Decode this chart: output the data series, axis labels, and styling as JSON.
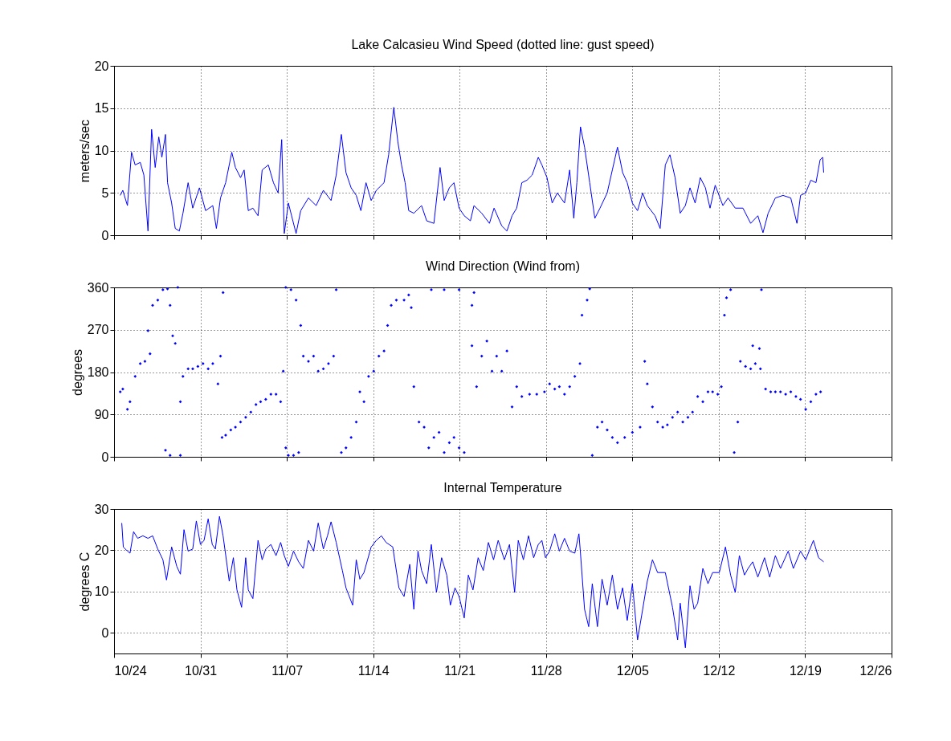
{
  "chart_data": [
    {
      "type": "line",
      "title": "Lake Calcasieu Wind Speed (dotted line: gust speed)",
      "ylabel": "meters/sec",
      "color": "#0000ff",
      "grid": true,
      "tick_labels": "y",
      "xlim": [
        "--10-24",
        "--12-26"
      ],
      "xticks": [
        {
          "value": "--10-24",
          "label": "10/24"
        },
        {
          "value": "--10-31",
          "label": "10/31"
        },
        {
          "value": "--11-07",
          "label": "11/07"
        },
        {
          "value": "--11-14",
          "label": "11/14"
        },
        {
          "value": "--11-21",
          "label": "11/21"
        },
        {
          "value": "--11-28",
          "label": "11/28"
        },
        {
          "value": "--12-05",
          "label": "12/05"
        },
        {
          "value": "--12-12",
          "label": "12/12"
        },
        {
          "value": "--12-19",
          "label": "12/19"
        },
        {
          "value": "--12-26",
          "label": "12/26"
        }
      ],
      "ylim": [
        0,
        20
      ],
      "yticks": [
        0,
        5,
        10,
        15,
        20
      ],
      "x": [
        "--10-24T12:00",
        "--10-24T17:00",
        "--10-25T02:00",
        "--10-25T10:00",
        "--10-25T17:00",
        "--10-26T03:00",
        "--10-26T10:00",
        "--10-26T18:00",
        "--10-27T01:00",
        "--10-27T08:00",
        "--10-27T15:00",
        "--10-27T21:00",
        "--10-28T04:00",
        "--10-28T08:00",
        "--10-28T16:00",
        "--10-28T23:00",
        "--10-29T07:00",
        "--10-29T14:00",
        "--10-30T00:00",
        "--10-30T09:00",
        "--10-30T22:00",
        "--10-31T10:00",
        "--11-01T00:00",
        "--11-01T07:00",
        "--11-01T15:00",
        "--11-02T01:00",
        "--11-02T13:00",
        "--11-02T20:00",
        "--11-03T06:00",
        "--11-03T13:00",
        "--11-03T21:00",
        "--11-04T06:00",
        "--11-04T16:00",
        "--11-05T00:00",
        "--11-05T12:00",
        "--11-05T22:00",
        "--11-06T07:00",
        "--11-06T14:00",
        "--11-06T19:00",
        "--11-07T03:00",
        "--11-07T18:00",
        "--11-08T03:00",
        "--11-08T18:00",
        "--11-09T09:00",
        "--11-09T23:00",
        "--11-10T14:00",
        "--11-11T00:00",
        "--11-11T10:00",
        "--11-11T19:00",
        "--11-12T05:00",
        "--11-12T15:00",
        "--11-13T00:00",
        "--11-13T10:00",
        "--11-13T20:00",
        "--11-14T06:00",
        "--11-14T21:00",
        "--11-15T06:00",
        "--11-15T16:00",
        "--11-16T00:00",
        "--11-16T07:00",
        "--11-16T14:00",
        "--11-16T21:00",
        "--11-17T07:00",
        "--11-17T22:00",
        "--11-18T08:00",
        "--11-18T22:00",
        "--11-19T10:00",
        "--11-19T18:00",
        "--11-20T04:00",
        "--11-20T13:00",
        "--11-20T23:00",
        "--11-21T09:00",
        "--11-21T21:00",
        "--11-22T04:00",
        "--11-22T19:00",
        "--11-23T10:00",
        "--11-23T19:00",
        "--11-24T10:00",
        "--11-24T20:00",
        "--11-25T06:00",
        "--11-25T15:00",
        "--11-26T01:00",
        "--11-26T11:00",
        "--11-26T21:00",
        "--11-27T09:00",
        "--11-27T16:00",
        "--11-28T02:00",
        "--11-28T12:00",
        "--11-28T22:00",
        "--11-29T12:00",
        "--11-29T22:00",
        "--11-30T06:00",
        "--11-30T12:00",
        "--11-30T19:00",
        "--12-01T03:00",
        "--12-01T13:00",
        "--12-01T23:00",
        "--12-02T09:00",
        "--12-02T23:00",
        "--12-03T09:00",
        "--12-03T19:00",
        "--12-04T05:00",
        "--12-04T14:00",
        "--12-05T00:00",
        "--12-05T10:00",
        "--12-05T20:00",
        "--12-06T05:00",
        "--12-06T20:00",
        "--12-07T06:00",
        "--12-07T16:00",
        "--12-08T01:00",
        "--12-08T11:00",
        "--12-08T21:00",
        "--12-09T07:00",
        "--12-09T16:00",
        "--12-10T02:00",
        "--12-10T12:00",
        "--12-10T22:00",
        "--12-11T07:00",
        "--12-11T17:00",
        "--12-12T08:00",
        "--12-12T18:00",
        "--12-13T08:00",
        "--12-13T23:00",
        "--12-14T14:00",
        "--12-15T04:00",
        "--12-15T14:00",
        "--12-16T00:00",
        "--12-16T14:00",
        "--12-17T05:00",
        "--12-17T20:00",
        "--12-18T08:00",
        "--12-18T15:00",
        "--12-19T01:00",
        "--12-19T11:00",
        "--12-19T21:00",
        "--12-20T05:00",
        "--12-20T10:00",
        "--12-20T12:00"
      ],
      "values": [
        4.7,
        5.3,
        3.5,
        9.8,
        8.3,
        8.6,
        7.1,
        0.5,
        12.5,
        8.0,
        11.6,
        9.2,
        11.9,
        6.2,
        3.8,
        0.8,
        0.5,
        2.6,
        6.2,
        3.2,
        5.6,
        2.9,
        3.5,
        0.8,
        4.4,
        6.2,
        9.8,
        8.0,
        6.8,
        7.7,
        2.9,
        3.2,
        2.3,
        7.7,
        8.3,
        6.2,
        5.0,
        11.3,
        0.2,
        3.8,
        0.2,
        2.9,
        4.4,
        3.5,
        5.3,
        4.1,
        7.1,
        11.9,
        7.4,
        5.6,
        4.7,
        2.9,
        6.2,
        4.1,
        5.3,
        6.2,
        9.5,
        15.1,
        11.0,
        8.3,
        6.2,
        2.9,
        2.6,
        3.5,
        1.7,
        1.4,
        8.0,
        4.1,
        5.6,
        6.2,
        3.2,
        2.3,
        1.7,
        3.5,
        2.6,
        1.4,
        3.2,
        1.1,
        0.5,
        2.3,
        3.2,
        6.2,
        6.5,
        7.1,
        9.2,
        8.3,
        6.8,
        3.8,
        5.0,
        3.8,
        7.7,
        2.0,
        6.2,
        12.8,
        10.4,
        6.2,
        2.0,
        3.2,
        5.0,
        7.7,
        10.4,
        7.4,
        6.2,
        3.8,
        2.9,
        5.0,
        3.5,
        2.3,
        0.8,
        8.3,
        9.5,
        6.8,
        2.6,
        3.5,
        5.6,
        3.8,
        6.8,
        5.6,
        3.2,
        5.9,
        3.5,
        4.4,
        3.2,
        3.2,
        1.4,
        2.3,
        0.3,
        2.6,
        4.4,
        4.7,
        4.4,
        1.4,
        4.7,
        5.0,
        6.5,
        6.2,
        8.9,
        9.2,
        7.4
      ]
    },
    {
      "type": "scatter",
      "title": "Wind Direction (Wind from)",
      "ylabel": "degrees",
      "color": "#0000ff",
      "marker": "diamond",
      "grid": true,
      "tick_labels": "y",
      "xlim": [
        "--10-24",
        "--12-26"
      ],
      "xticks": [
        {
          "value": "--10-24",
          "label": "10/24"
        },
        {
          "value": "--10-31",
          "label": "10/31"
        },
        {
          "value": "--11-07",
          "label": "11/07"
        },
        {
          "value": "--11-14",
          "label": "11/14"
        },
        {
          "value": "--11-21",
          "label": "11/21"
        },
        {
          "value": "--11-28",
          "label": "11/28"
        },
        {
          "value": "--12-05",
          "label": "12/05"
        },
        {
          "value": "--12-12",
          "label": "12/12"
        },
        {
          "value": "--12-19",
          "label": "12/19"
        },
        {
          "value": "--12-26",
          "label": "12/26"
        }
      ],
      "ylim": [
        0,
        360
      ],
      "yticks": [
        0,
        90,
        180,
        270,
        360
      ],
      "x": [
        "--10-24T12:00",
        "--10-24T17:00",
        "--10-25T02:00",
        "--10-25T07:00",
        "--10-25T17:00",
        "--10-26T03:00",
        "--10-26T12:00",
        "--10-26T22:00",
        "--10-26T18:00",
        "--10-27T03:00",
        "--10-27T13:00",
        "--10-27T23:00",
        "--10-28T08:00",
        "--10-28T13:00",
        "--10-28T18:00",
        "--10-28T23:00",
        "--10-29T04:00",
        "--10-28T04:00",
        "--10-28T13:00",
        "--10-29T09:00",
        "--10-29T09:00",
        "--10-29T14:00",
        "--10-30T00:00",
        "--10-30T09:00",
        "--10-30T19:00",
        "--10-31T05:00",
        "--10-31T15:00",
        "--11-01T00:00",
        "--11-01T10:00",
        "--11-01T15:00",
        "--11-01T20:00",
        "--11-01T18:00",
        "--11-02T01:00",
        "--11-02T11:00",
        "--11-02T20:00",
        "--11-03T06:00",
        "--11-03T16:00",
        "--11-04T02:00",
        "--11-04T12:00",
        "--11-04T21:00",
        "--11-05T07:00",
        "--11-05T17:00",
        "--11-06T03:00",
        "--11-06T12:00",
        "--11-06T17:00",
        "--11-06T22:00",
        "--11-07T03:00",
        "--11-07T13:00",
        "--11-07T23:00",
        "--11-06T22:00",
        "--11-07T08:00",
        "--11-07T18:00",
        "--11-08T03:00",
        "--11-08T08:00",
        "--11-08T18:00",
        "--11-09T04:00",
        "--11-09T13:00",
        "--11-09T23:00",
        "--11-10T09:00",
        "--11-10T19:00",
        "--11-11T00:00",
        "--11-11T10:00",
        "--11-11T19:00",
        "--11-12T05:00",
        "--11-12T15:00",
        "--11-12T22:00",
        "--11-13T06:00",
        "--11-13T15:00",
        "--11-14T01:00",
        "--11-14T11:00",
        "--11-14T21:00",
        "--11-15T04:00",
        "--11-15T11:00",
        "--11-15T21:00",
        "--11-16T12:00",
        "--11-16T21:00",
        "--11-17T02:00",
        "--11-17T07:00",
        "--11-17T17:00",
        "--11-18T03:00",
        "--11-18T12:00",
        "--11-18T22:00",
        "--11-19T08:00",
        "--11-19T18:00",
        "--11-20T04:00",
        "--11-20T13:00",
        "--11-20T23:00",
        "--11-21T09:00",
        "--11-18T17:00",
        "--11-19T18:00",
        "--11-20T23:00",
        "--11-22T00:00",
        "--11-22T04:00",
        "--11-22T00:00",
        "--11-22T09:00",
        "--11-22T19:00",
        "--11-23T05:00",
        "--11-23T15:00",
        "--11-24T00:00",
        "--11-24T10:00",
        "--11-24T20:00",
        "--11-25T06:00",
        "--11-25T15:00",
        "--11-26T01:00",
        "--11-26T16:00",
        "--11-27T06:00",
        "--11-27T21:00",
        "--11-28T07:00",
        "--11-28T17:00",
        "--11-29T02:00",
        "--11-29T12:00",
        "--11-29T22:00",
        "--11-30T08:00",
        "--11-30T18:00",
        "--11-30T22:00",
        "--12-01T08:00",
        "--12-01T13:00",
        "--12-01T18:00",
        "--12-02T04:00",
        "--12-02T13:00",
        "--12-02T23:00",
        "--12-03T09:00",
        "--12-03T19:00",
        "--12-04T09:00",
        "--12-05T00:00",
        "--12-05T15:00",
        "--12-06T00:00",
        "--12-06T05:00",
        "--12-06T15:00",
        "--12-07T01:00",
        "--12-07T11:00",
        "--12-07T20:00",
        "--12-08T06:00",
        "--12-08T16:00",
        "--12-09T02:00",
        "--12-09T12:00",
        "--12-09T21:00",
        "--12-10T07:00",
        "--12-10T17:00",
        "--12-11T03:00",
        "--12-11T12:00",
        "--12-11T22:00",
        "--12-12T05:00",
        "--12-12T11:00",
        "--12-12T15:00",
        "--12-12T23:00",
        "--12-13T06:00",
        "--12-13T13:00",
        "--12-13T18:00",
        "--12-14T04:00",
        "--12-14T14:00",
        "--12-14T23:00",
        "--12-15T09:00",
        "--12-15T19:00",
        "--12-16T05:00",
        "--12-16T14:00",
        "--12-17T00:00",
        "--12-17T10:00",
        "--12-17T20:00",
        "--12-18T06:00",
        "--12-18T15:00",
        "--12-19T01:00",
        "--12-19T11:00",
        "--12-19T21:00",
        "--12-20T06:00",
        "--12-15T11:00",
        "--12-14T18:00",
        "--12-15T07:00"
      ],
      "values": [
        138,
        144,
        101,
        117,
        171,
        198,
        203,
        219,
        268,
        322,
        333,
        355,
        357,
        322,
        257,
        241,
        360,
        14,
        3,
        3,
        117,
        171,
        187,
        187,
        192,
        198,
        187,
        198,
        155,
        214,
        349,
        41,
        46,
        57,
        63,
        74,
        84,
        95,
        111,
        117,
        122,
        133,
        133,
        117,
        182,
        19,
        3,
        3,
        9,
        360,
        355,
        333,
        279,
        214,
        203,
        214,
        182,
        187,
        198,
        214,
        355,
        9,
        19,
        41,
        74,
        138,
        117,
        171,
        182,
        214,
        225,
        279,
        322,
        333,
        333,
        344,
        317,
        149,
        74,
        63,
        19,
        41,
        52,
        9,
        30,
        41,
        19,
        9,
        355,
        355,
        355,
        322,
        349,
        236,
        149,
        214,
        246,
        182,
        214,
        182,
        225,
        106,
        149,
        128,
        133,
        133,
        138,
        155,
        144,
        149,
        133,
        149,
        171,
        198,
        301,
        333,
        357,
        3,
        63,
        74,
        57,
        41,
        30,
        41,
        52,
        63,
        203,
        155,
        106,
        74,
        63,
        68,
        84,
        95,
        74,
        84,
        95,
        128,
        117,
        138,
        138,
        133,
        149,
        301,
        338,
        355,
        9,
        74,
        203,
        192,
        187,
        198,
        187,
        144,
        138,
        138,
        138,
        133,
        138,
        128,
        122,
        101,
        117,
        133,
        138,
        355,
        236,
        230
      ]
    },
    {
      "type": "line",
      "title": "Internal Temperature",
      "ylabel": "degrees C",
      "color": "#0000ff",
      "grid": true,
      "xlim": [
        "--10-24",
        "--12-26"
      ],
      "xticks": [
        {
          "value": "--10-24",
          "label": "10/24"
        },
        {
          "value": "--10-31",
          "label": "10/31"
        },
        {
          "value": "--11-07",
          "label": "11/07"
        },
        {
          "value": "--11-14",
          "label": "11/14"
        },
        {
          "value": "--11-21",
          "label": "11/21"
        },
        {
          "value": "--11-28",
          "label": "11/28"
        },
        {
          "value": "--12-05",
          "label": "12/05"
        },
        {
          "value": "--12-12",
          "label": "12/12"
        },
        {
          "value": "--12-19",
          "label": "12/19"
        },
        {
          "value": "--12-26",
          "label": "12/26"
        }
      ],
      "ylim": [
        -5,
        30
      ],
      "yticks": [
        0,
        10,
        20,
        30
      ],
      "x": [
        "--10-24T15:00",
        "--10-24T18:00",
        "--10-25T02:00",
        "--10-25T07:00",
        "--10-25T14:00",
        "--10-25T22:00",
        "--10-26T08:00",
        "--10-26T18:00",
        "--10-27T03:00",
        "--10-27T13:00",
        "--10-27T23:00",
        "--10-28T06:00",
        "--10-28T16:00",
        "--10-29T02:00",
        "--10-29T09:00",
        "--10-29T16:00",
        "--10-30T00:00",
        "--10-30T09:00",
        "--10-30T16:00",
        "--10-31T00:00",
        "--10-31T07:00",
        "--10-31T15:00",
        "--10-31T23:00",
        "--11-01T05:00",
        "--11-01T13:00",
        "--11-01T20:00",
        "--11-02T08:00",
        "--11-02T16:00",
        "--11-02T23:00",
        "--11-03T08:00",
        "--11-03T16:00",
        "--11-03T21:00",
        "--11-04T06:00",
        "--11-04T16:00",
        "--11-05T00:00",
        "--11-05T07:00",
        "--11-05T17:00",
        "--11-06T03:00",
        "--11-06T12:00",
        "--11-06T19:00",
        "--11-07T03:00",
        "--11-07T13:00",
        "--11-07T23:00",
        "--11-08T08:00",
        "--11-08T18:00",
        "--11-09T04:00",
        "--11-09T13:00",
        "--11-09T23:00",
        "--11-10T07:00",
        "--11-10T14:00",
        "--11-11T00:00",
        "--11-11T12:00",
        "--11-11T19:00",
        "--11-12T08:00",
        "--11-12T15:00",
        "--11-12T22:00",
        "--11-13T06:00",
        "--11-13T13:00",
        "--11-13T20:00",
        "--11-14T06:00",
        "--11-14T16:00",
        "--11-15T01:00",
        "--11-15T14:00",
        "--11-16T02:00",
        "--11-16T12:00",
        "--11-16T23:00",
        "--11-17T07:00",
        "--11-17T15:00",
        "--11-17T22:00",
        "--11-18T08:00",
        "--11-18T17:00",
        "--11-19T03:00",
        "--11-19T13:00",
        "--11-19T23:00",
        "--11-20T06:00",
        "--11-20T15:00",
        "--11-20T23:00",
        "--11-21T09:00",
        "--11-21T17:00",
        "--11-22T02:00",
        "--11-22T12:00",
        "--11-22T22:00",
        "--11-23T08:00",
        "--11-23T18:00",
        "--11-24T03:00",
        "--11-24T15:00",
        "--11-25T01:00",
        "--11-25T11:00",
        "--11-25T18:00",
        "--11-26T04:00",
        "--11-26T14:00",
        "--11-27T00:00",
        "--11-27T09:00",
        "--11-27T16:00",
        "--11-27T23:00",
        "--11-28T07:00",
        "--11-28T17:00",
        "--11-29T02:00",
        "--11-29T12:00",
        "--11-29T22:00",
        "--11-30T08:00",
        "--11-30T16:00",
        "--11-30T19:00",
        "--12-01T03:00",
        "--12-01T11:00",
        "--12-01T18:00",
        "--12-02T04:00",
        "--12-02T13:00",
        "--12-02T23:00",
        "--12-03T09:00",
        "--12-03T19:00",
        "--12-04T05:00",
        "--12-04T14:00",
        "--12-05T00:00",
        "--12-05T10:00",
        "--12-05T20:00",
        "--12-06T05:00",
        "--12-06T15:00",
        "--12-07T01:00",
        "--12-07T16:00",
        "--12-08T06:00",
        "--12-08T16:00",
        "--12-08T21:00",
        "--12-09T07:00",
        "--12-09T16:00",
        "--12-10T00:00",
        "--12-10T07:00",
        "--12-10T17:00",
        "--12-11T03:00",
        "--12-11T12:00",
        "--12-12T01:00",
        "--12-12T13:00",
        "--12-12T23:00",
        "--12-13T08:00",
        "--12-13T16:00",
        "--12-14T02:00",
        "--12-14T09:00",
        "--12-14T18:00",
        "--12-15T04:00",
        "--12-15T17:00",
        "--12-16T03:00",
        "--12-16T14:00",
        "--12-17T00:00",
        "--12-17T15:00",
        "--12-18T01:00",
        "--12-18T15:00",
        "--12-19T01:00",
        "--12-19T16:00",
        "--12-20T02:00",
        "--12-20T12:00"
      ],
      "values": [
        26.6,
        20.8,
        19.8,
        19.3,
        24.5,
        22.9,
        23.5,
        22.9,
        23.5,
        20.3,
        17.7,
        12.8,
        20.8,
        16.1,
        14.2,
        25.0,
        19.8,
        20.3,
        27.1,
        21.4,
        22.4,
        27.6,
        21.4,
        20.3,
        28.2,
        23.5,
        12.5,
        18.2,
        10.4,
        6.2,
        18.2,
        10.4,
        8.3,
        22.4,
        17.7,
        20.3,
        21.4,
        18.7,
        21.9,
        18.7,
        16.1,
        19.8,
        17.2,
        15.6,
        22.4,
        19.8,
        26.6,
        20.3,
        23.5,
        26.9,
        21.9,
        15.1,
        10.9,
        6.7,
        17.7,
        13.0,
        14.6,
        17.7,
        20.8,
        22.4,
        23.5,
        21.9,
        20.8,
        10.9,
        8.8,
        16.6,
        5.7,
        19.8,
        15.1,
        11.9,
        21.4,
        9.8,
        18.2,
        14.0,
        6.7,
        10.9,
        8.8,
        3.6,
        14.0,
        10.4,
        18.2,
        15.1,
        21.9,
        17.7,
        22.4,
        17.7,
        21.4,
        9.8,
        22.4,
        17.7,
        23.5,
        18.2,
        21.4,
        22.4,
        18.2,
        19.8,
        24.0,
        19.8,
        22.9,
        19.8,
        19.3,
        24.0,
        19.3,
        5.7,
        1.5,
        11.9,
        1.5,
        13.0,
        6.7,
        14.0,
        5.7,
        10.9,
        3.0,
        11.9,
        -1.7,
        5.7,
        12.5,
        17.7,
        14.6,
        14.6,
        6.2,
        -1.7,
        7.2,
        -3.6,
        11.4,
        5.7,
        7.2,
        15.6,
        11.9,
        14.6,
        14.6,
        20.8,
        14.0,
        9.8,
        18.7,
        14.0,
        15.6,
        17.2,
        13.5,
        18.2,
        13.5,
        18.7,
        15.6,
        19.8,
        15.6,
        19.8,
        17.7,
        22.4,
        18.2,
        17.2
      ]
    }
  ]
}
